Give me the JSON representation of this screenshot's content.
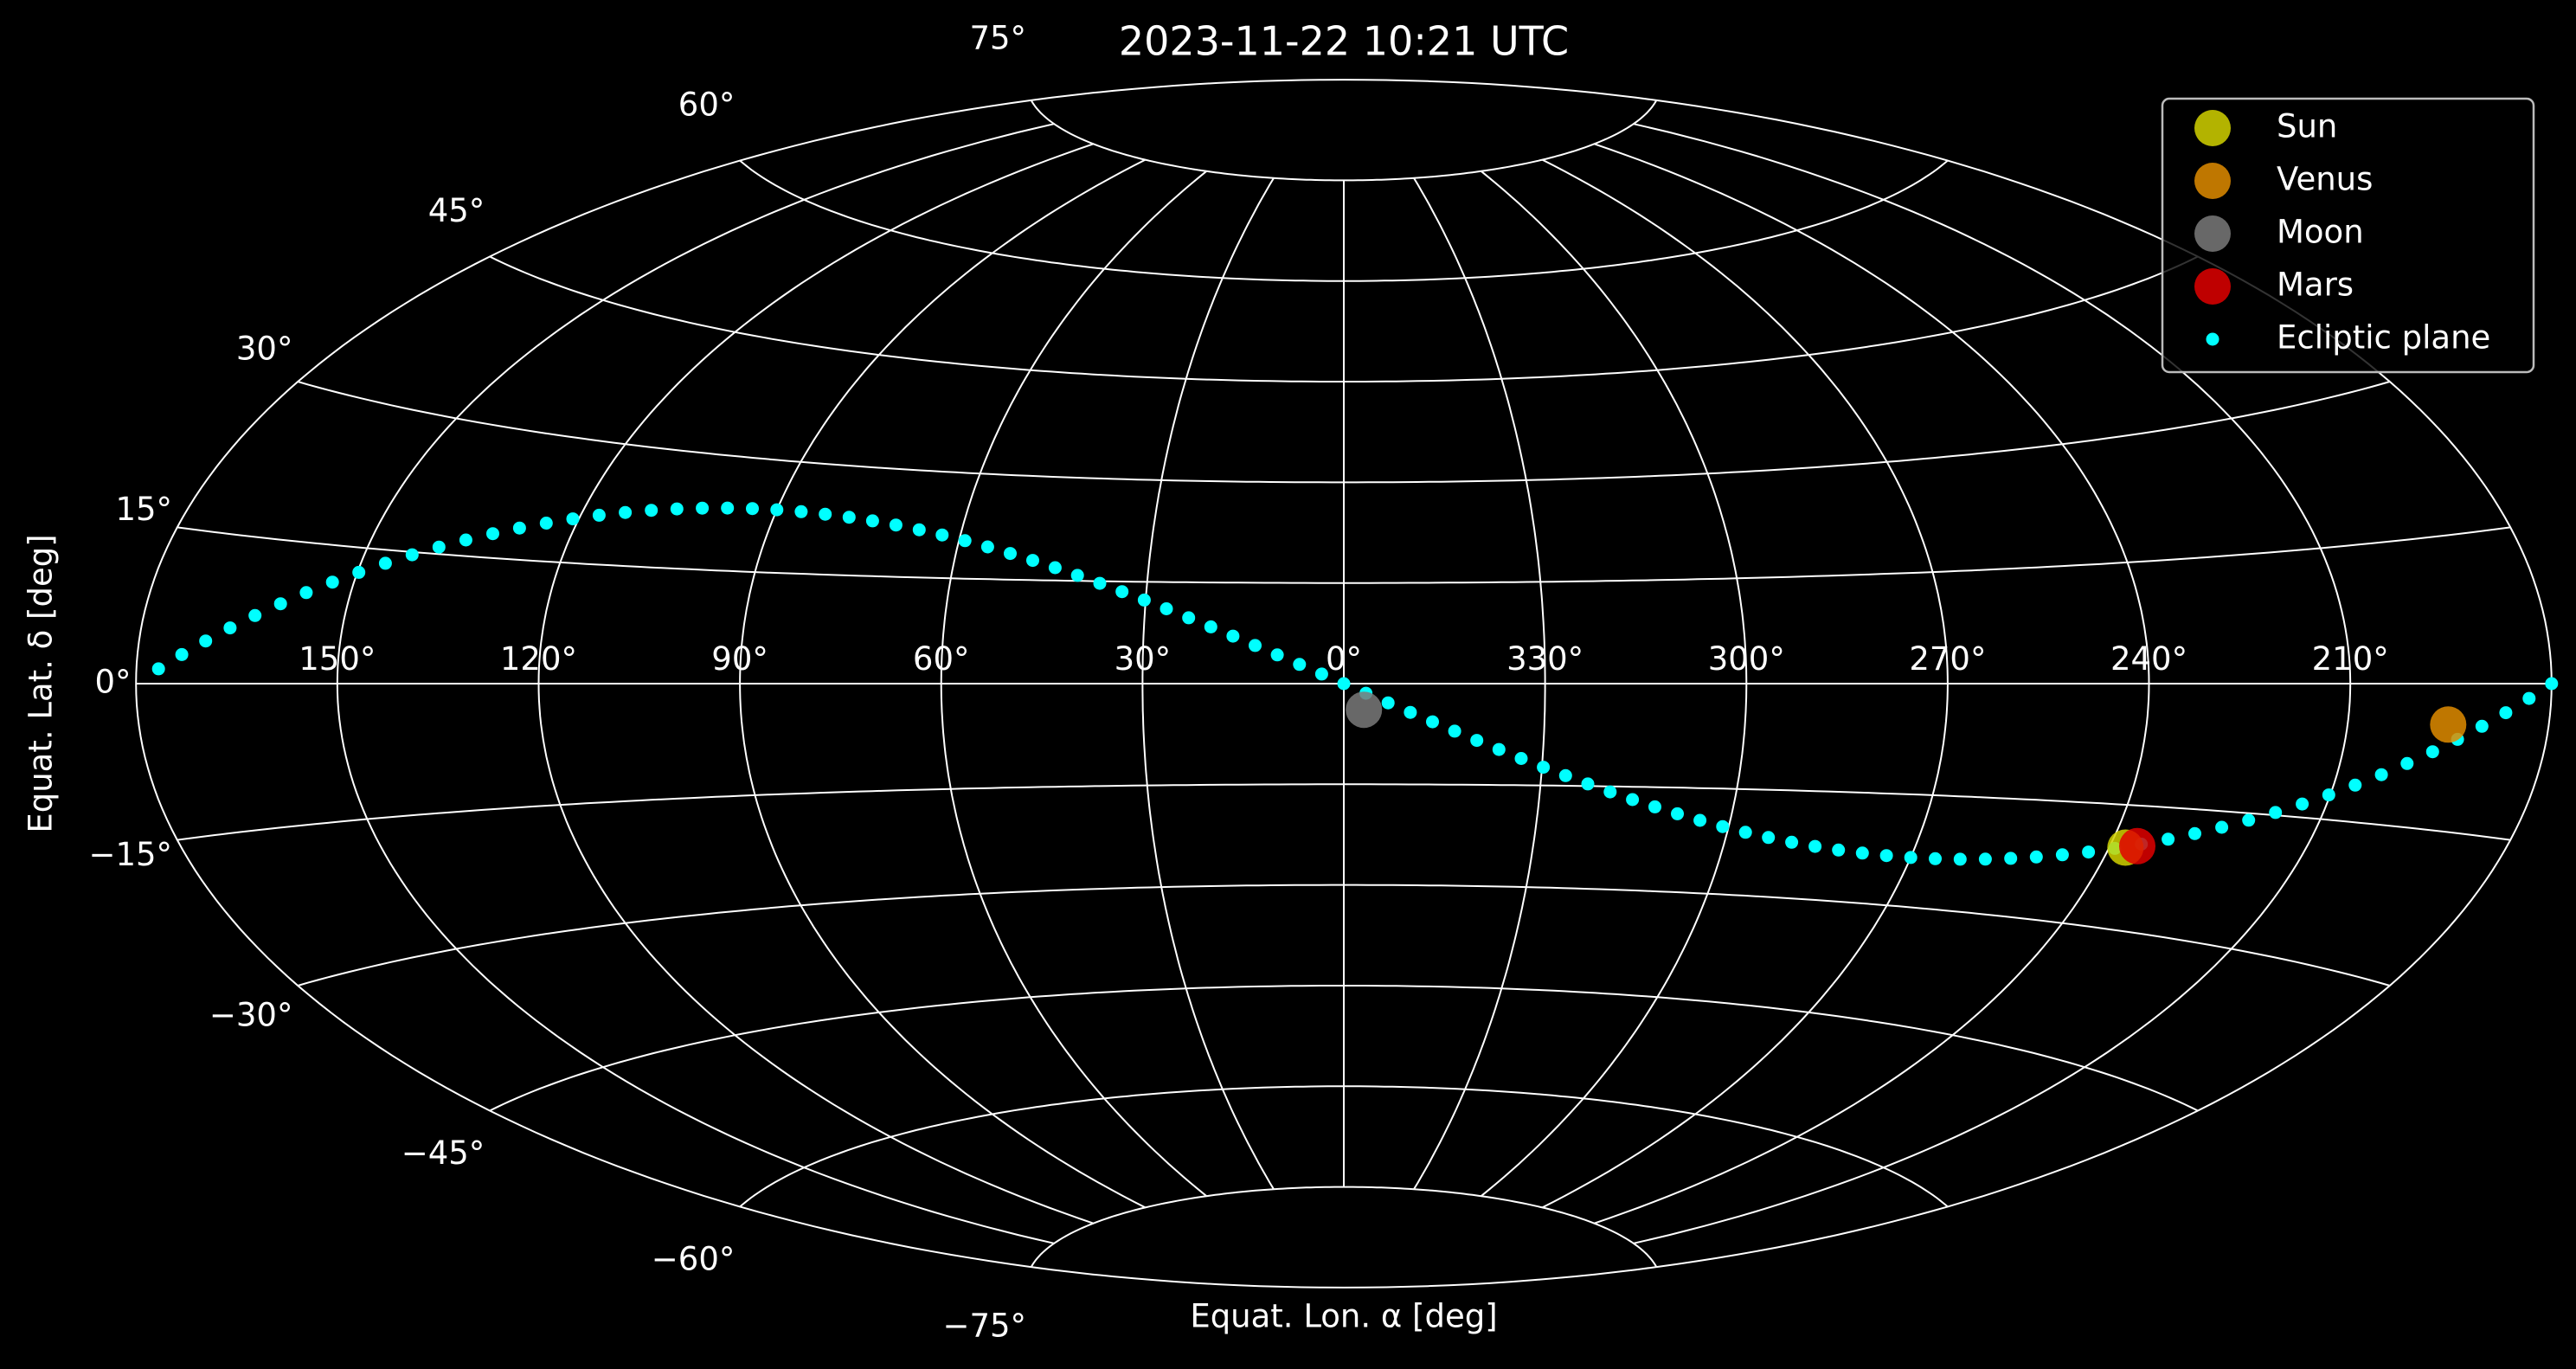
{
  "chart_data": {
    "type": "scatter",
    "projection": "aitoff",
    "title": "2023-11-22 10:21 UTC",
    "xlabel": "Equat. Lon. α [deg]",
    "ylabel": "Equat. Lat. δ [deg]",
    "xlim": [
      180,
      -180
    ],
    "ylim": [
      -90,
      90
    ],
    "xticks": [
      {
        "value": 150,
        "label": "150°"
      },
      {
        "value": 120,
        "label": "120°"
      },
      {
        "value": 90,
        "label": "90°"
      },
      {
        "value": 60,
        "label": "60°"
      },
      {
        "value": 30,
        "label": "30°"
      },
      {
        "value": 0,
        "label": "0°"
      },
      {
        "value": 330,
        "label": "330°"
      },
      {
        "value": 300,
        "label": "300°"
      },
      {
        "value": 270,
        "label": "270°"
      },
      {
        "value": 240,
        "label": "240°"
      },
      {
        "value": 210,
        "label": "210°"
      }
    ],
    "yticks": [
      {
        "value": -75,
        "label": "−75°"
      },
      {
        "value": -60,
        "label": "−60°"
      },
      {
        "value": -45,
        "label": "−45°"
      },
      {
        "value": -30,
        "label": "−30°"
      },
      {
        "value": -15,
        "label": "−15°"
      },
      {
        "value": 0,
        "label": "0°"
      },
      {
        "value": 15,
        "label": "15°"
      },
      {
        "value": 30,
        "label": "30°"
      },
      {
        "value": 45,
        "label": "45°"
      },
      {
        "value": 60,
        "label": "60°"
      },
      {
        "value": 75,
        "label": "75°"
      }
    ],
    "grid": true,
    "legend": "upper right",
    "series": [
      {
        "name": "Ecliptic plane",
        "color": "#00ffff",
        "x": [
          0,
          3.3,
          6.61,
          9.93,
          13.26,
          16.6,
          19.97,
          23.35,
          26.77,
          30.21,
          33.69,
          37.2,
          40.75,
          44.33,
          47.96,
          51.62,
          55.33,
          59.07,
          62.84,
          66.65,
          70.5,
          74.37,
          78.25,
          82.16,
          86.08,
          90,
          93.92,
          97.84,
          101.75,
          105.63,
          109.5,
          113.35,
          117.16,
          120.93,
          124.67,
          128.38,
          132.04,
          135.67,
          139.25,
          142.8,
          146.31,
          149.79,
          153.23,
          156.65,
          160.03,
          163.4,
          166.74,
          170.07,
          173.39,
          176.7,
          180,
          183.3,
          186.61,
          189.93,
          193.26,
          196.6,
          199.97,
          203.35,
          206.77,
          210.21,
          213.69,
          217.2,
          220.75,
          224.33,
          227.96,
          231.62,
          235.33,
          239.07,
          242.84,
          246.65,
          250.5,
          254.37,
          258.25,
          262.16,
          266.08,
          270,
          273.92,
          277.84,
          281.75,
          285.63,
          289.5,
          293.35,
          297.16,
          300.93,
          304.67,
          308.38,
          312.04,
          315.67,
          319.25,
          322.8,
          326.31,
          329.79,
          333.23,
          336.65,
          340.03,
          343.4,
          346.74,
          350.07,
          353.39,
          356.7
        ],
        "values": [
          0,
          1.43,
          2.86,
          4.27,
          5.68,
          7.06,
          8.42,
          9.75,
          11.05,
          12.31,
          13.52,
          14.69,
          15.8,
          16.86,
          17.85,
          18.77,
          19.62,
          20.4,
          21.1,
          21.71,
          22.23,
          22.66,
          23,
          23.24,
          23.39,
          23.44,
          23.39,
          23.24,
          23,
          22.66,
          22.23,
          21.71,
          21.1,
          20.4,
          19.62,
          18.77,
          17.85,
          16.86,
          15.8,
          14.69,
          13.52,
          12.31,
          11.05,
          9.75,
          8.42,
          7.06,
          5.68,
          4.27,
          2.86,
          1.43,
          0,
          -1.43,
          -2.86,
          -4.27,
          -5.68,
          -7.06,
          -8.42,
          -9.75,
          -11.05,
          -12.31,
          -13.52,
          -14.69,
          -15.8,
          -16.86,
          -17.85,
          -18.77,
          -19.62,
          -20.4,
          -21.1,
          -21.71,
          -22.23,
          -22.66,
          -23,
          -23.24,
          -23.39,
          -23.44,
          -23.39,
          -23.24,
          -23,
          -22.66,
          -22.23,
          -21.71,
          -21.1,
          -20.4,
          -19.62,
          -18.77,
          -17.85,
          -16.86,
          -15.8,
          -14.69,
          -13.52,
          -12.31,
          -11.05,
          -9.75,
          -8.42,
          -7.06,
          -5.68,
          -4.27,
          -2.86,
          -1.43
        ]
      },
      {
        "name": "Sun",
        "color": "#d2d200",
        "x": [
          237.5
        ],
        "values": [
          -20.2
        ]
      },
      {
        "name": "Venus",
        "color": "#e08c00",
        "x": [
          195
        ],
        "values": [
          -4.2
        ]
      },
      {
        "name": "Moon",
        "color": "#7a7a7a",
        "x": [
          357
        ],
        "values": [
          -3.9
        ]
      },
      {
        "name": "Mars",
        "color": "#e00000",
        "x": [
          235.8
        ],
        "values": [
          -19.9
        ]
      }
    ]
  }
}
